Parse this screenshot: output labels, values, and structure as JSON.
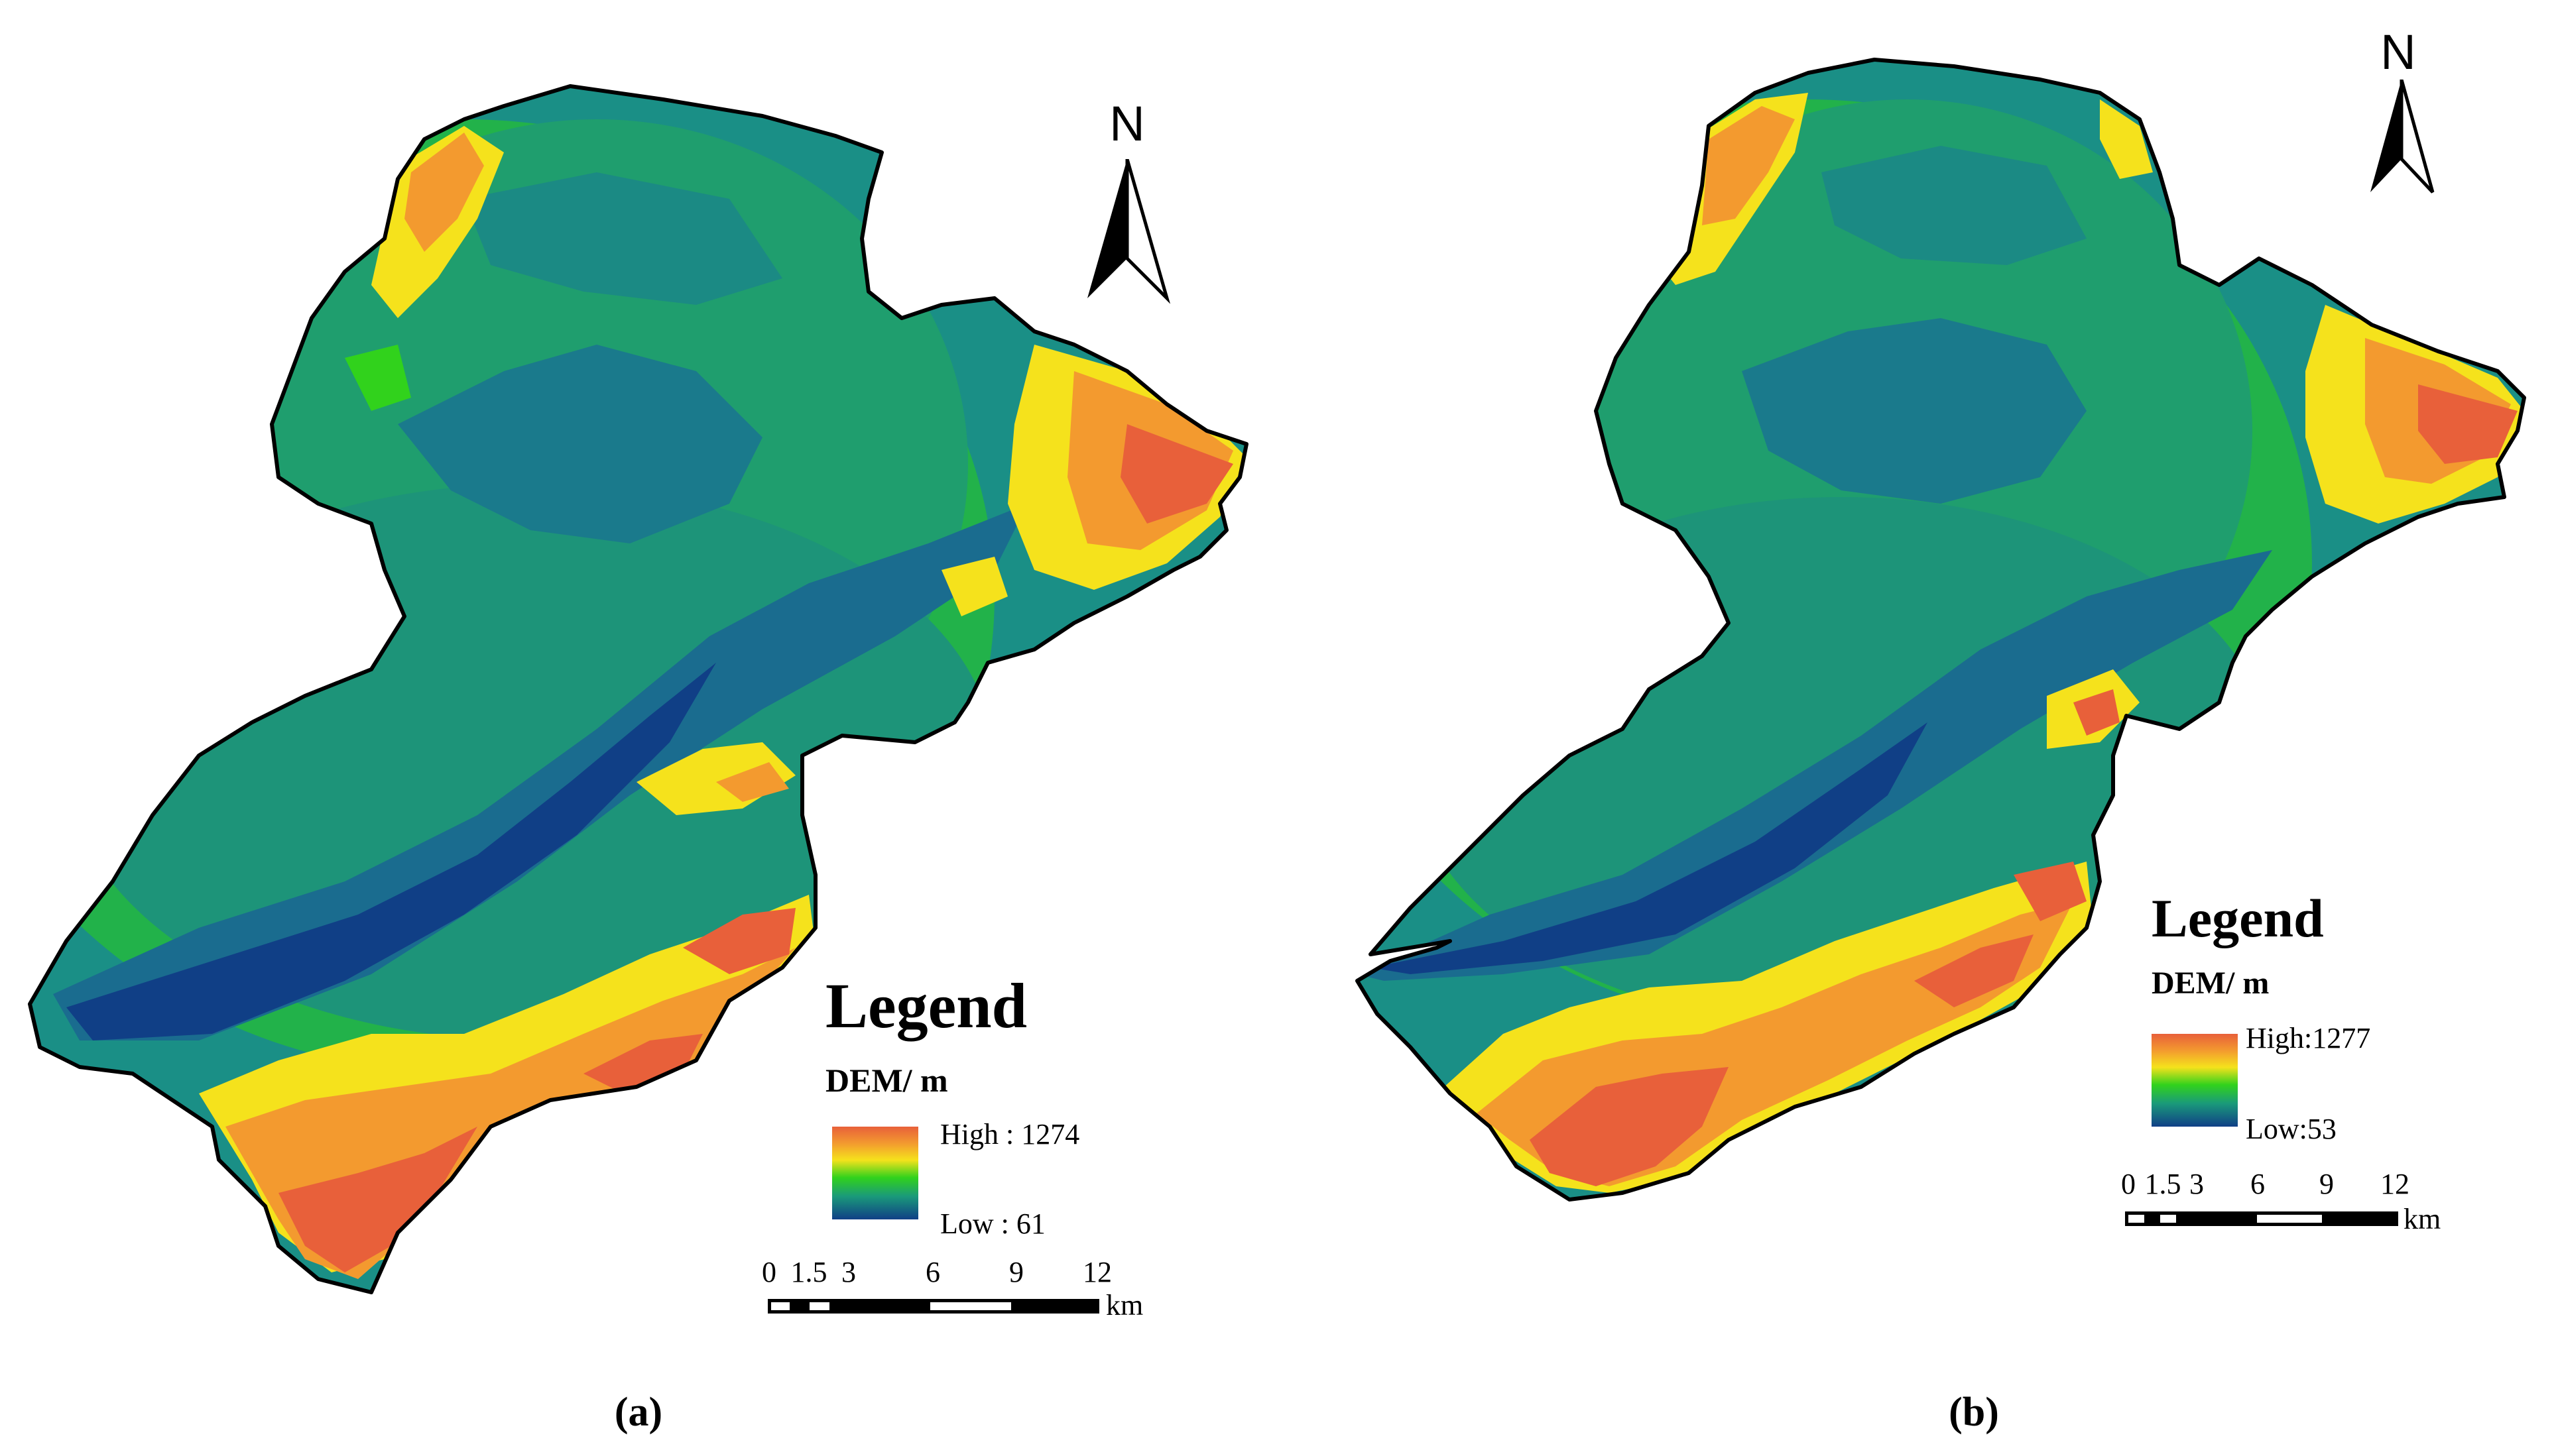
{
  "panels": [
    {
      "id": "a",
      "caption": "(a)",
      "north_label": "N",
      "legend": {
        "title": "Legend",
        "subtitle": "DEM/ m",
        "high_label": "High : 1274",
        "low_label": "Low : 61",
        "high_value": 1274,
        "low_value": 61
      },
      "scale": {
        "ticks": [
          "0",
          "1.5",
          "3",
          "6",
          "9",
          "12"
        ],
        "unit": "km"
      }
    },
    {
      "id": "b",
      "caption": "(b)",
      "north_label": "N",
      "legend": {
        "title": "Legend",
        "subtitle": "DEM/ m",
        "high_label": "High:1277",
        "low_label": "Low:53",
        "high_value": 1277,
        "low_value": 53
      },
      "scale": {
        "ticks": [
          "0",
          "1.5",
          "3",
          "6",
          "9",
          "12"
        ],
        "unit": "km"
      }
    }
  ],
  "colors": {
    "low": "#0f3f85",
    "mid_low": "#1a8f86",
    "mid": "#22c83a",
    "mid_high": "#f5e21c",
    "high": "#e8603a",
    "outline": "#000000"
  }
}
